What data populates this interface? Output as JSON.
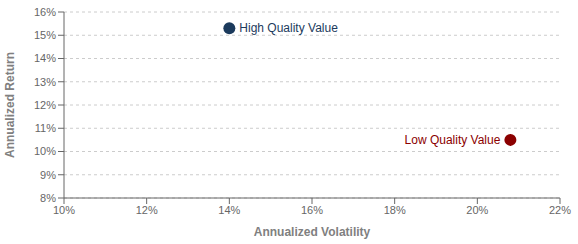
{
  "chart_data": {
    "type": "scatter",
    "xlabel": "Annualized Volatility",
    "ylabel": "Annualized Return",
    "series": [
      {
        "name": "High Quality Value",
        "color": "#1b3a5c",
        "x": [
          0.14
        ],
        "values": [
          0.153
        ]
      },
      {
        "name": "Low Quality Value",
        "color": "#8b0000",
        "x": [
          0.208
        ],
        "values": [
          0.105
        ]
      }
    ],
    "xlim": [
      0.1,
      0.22
    ],
    "ylim": [
      0.08,
      0.16
    ],
    "xticks": [
      {
        "value": 0.1,
        "label": "10%"
      },
      {
        "value": 0.12,
        "label": "12%"
      },
      {
        "value": 0.14,
        "label": "14%"
      },
      {
        "value": 0.16,
        "label": "16%"
      },
      {
        "value": 0.18,
        "label": "18%"
      },
      {
        "value": 0.2,
        "label": "20%"
      },
      {
        "value": 0.22,
        "label": "22%"
      }
    ],
    "yticks": [
      {
        "value": 0.08,
        "label": "8%"
      },
      {
        "value": 0.09,
        "label": "9%"
      },
      {
        "value": 0.1,
        "label": "10%"
      },
      {
        "value": 0.11,
        "label": "11%"
      },
      {
        "value": 0.12,
        "label": "12%"
      },
      {
        "value": 0.13,
        "label": "13%"
      },
      {
        "value": 0.14,
        "label": "14%"
      },
      {
        "value": 0.15,
        "label": "15%"
      },
      {
        "value": 0.16,
        "label": "16%"
      }
    ],
    "grid": true
  }
}
